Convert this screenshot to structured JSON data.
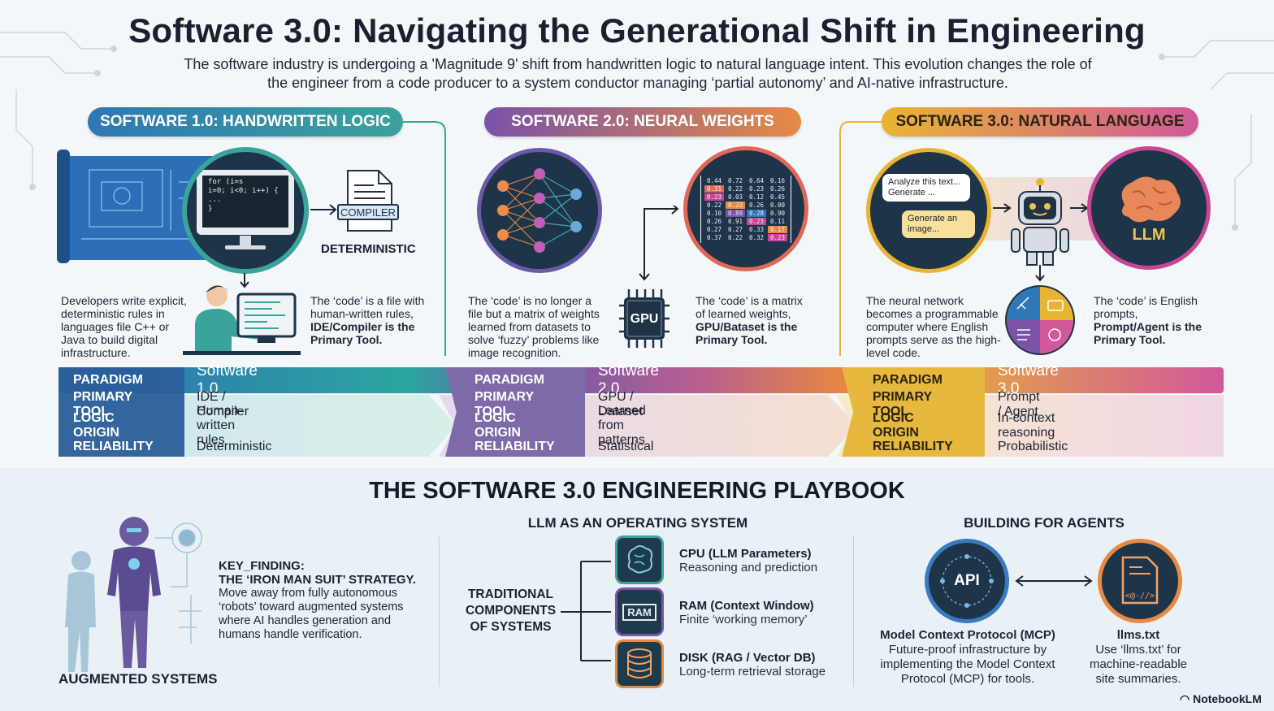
{
  "header": {
    "title": "Software 3.0: Navigating the Generational Shift in Engineering",
    "subtitle": "The software industry is undergoing a 'Magnitude 9' shift from handwritten logic to natural language intent. This evolution changes the role of the engineer from a code producer to a system conductor managing ‘partial autonomy’ and AI-native infrastructure."
  },
  "colors": {
    "sw1": "#2f77b5",
    "sw1_teal": "#3aa39a",
    "sw2": "#7a52a8",
    "sw2_orange": "#e68a45",
    "sw3": "#e5b030",
    "sw3_pink": "#c94595",
    "dark_navy": "#1f3347"
  },
  "sw1": {
    "pill": "SOFTWARE 1.0: HANDWRITTEN LOGIC",
    "code_lines": [
      "for (i=s",
      "  i=0; i<0; i++) {",
      "  ...",
      "}"
    ],
    "compiler_label": "COMPILER",
    "deterministic_label": "DETERMINISTIC",
    "desc_left": "Developers write explicit, deterministic rules in languages file C++ or Java to build digital infrastructure.",
    "desc_right_a": "The ‘code’ is a file with human-written rules, ",
    "desc_right_b": "IDE/Compiler is the Primary Tool."
  },
  "sw2": {
    "pill": "SOFTWARE 2.0: NEURAL WEIGHTS",
    "matrix": [
      [
        "0.44",
        "0.72",
        "0.64",
        "0.16"
      ],
      [
        "0.31",
        "0.22",
        "0.23",
        "0.26"
      ],
      [
        "0.23",
        "0.03",
        "0.12",
        "0.45"
      ],
      [
        "0.22",
        "0.22",
        "0.26",
        "0.00"
      ],
      [
        "0.10",
        "0.89",
        "0.28",
        "0.90"
      ],
      [
        "0.26",
        "0.91",
        "0.23",
        "0.11"
      ],
      [
        "0.27",
        "0.27",
        "0.33",
        "0.17"
      ],
      [
        "0.37",
        "0.22",
        "0.32",
        "0.23"
      ]
    ],
    "gpu_label": "GPU",
    "desc_left": "The ‘code’ is no longer a file but a matrix of weights learned from datasets to solve ‘fuzzy’ problems like image recognition.",
    "desc_right_a": "The ‘code’ is a matrix of learned weights, ",
    "desc_right_b": "GPU/Bataset is the Primary Tool."
  },
  "sw3": {
    "pill": "SOFTWARE 3.0: NATURAL LANGUAGE",
    "bubble1": "Analyze this text... Generate ...",
    "bubble2": "Generate an image...",
    "llm_label": "LLM",
    "desc_left": "The neural network becomes a programmable computer where English prompts serve as the high-level code.",
    "desc_right_a": "The ‘code’ is English prompts, ",
    "desc_right_b": "Prompt/Agent is the Primary Tool."
  },
  "table": {
    "keys": [
      "PARADIGM",
      "PRIMARY TOOL",
      "LOGIC ORIGIN",
      "RELIABILITY"
    ],
    "sw1": [
      "Software 1.0",
      "IDE / Compiler",
      "Human-written rules",
      "Deterministic"
    ],
    "sw2": [
      "Software 2.0",
      "GPU / Dataset",
      "Learned from patterns",
      "Statistical"
    ],
    "sw3": [
      "Software 3.0",
      "Prompt / Agent",
      "In-context reasoning",
      "Probabilistic"
    ]
  },
  "playbook": {
    "title": "THE SOFTWARE 3.0 ENGINEERING PLAYBOOK",
    "augmented": {
      "label": "AUGMENTED SYSTEMS",
      "key_finding": "KEY_FINDING:",
      "strategy": "THE ‘IRON MAN SUIT’ STRATEGY.",
      "text": "Move away from fully autonomous ‘robots’ toward augmented systems where AI handles generation and humans handle verification."
    },
    "os": {
      "heading": "LLM AS AN OPERATING SYSTEM",
      "root": "TRADITIONAL COMPONENTS OF SYSTEMS",
      "ram_icon_label": "RAM",
      "items": [
        {
          "title": "CPU (LLM Parameters)",
          "sub": "Reasoning and prediction",
          "icon": "brain-chip-icon"
        },
        {
          "title": "RAM (Context Window)",
          "sub": "Finite ‘working memory’",
          "icon": "ram-icon"
        },
        {
          "title": "DISK (RAG / Vector DB)",
          "sub": "Long-term retrieval storage",
          "icon": "database-icon"
        }
      ]
    },
    "agents": {
      "heading": "BUILDING FOR AGENTS",
      "api_label": "API",
      "mcp_title": "Model Context Protocol (MCP)",
      "mcp_text": "Future-proof infrastructure by implementing the Model Context Protocol (MCP) for tools.",
      "llms_icon_text": "<@-//>",
      "llms_title": "llms.txt",
      "llms_text": "Use ‘llms.txt’ for machine-readable site summaries."
    }
  },
  "brand": "NotebookLM"
}
